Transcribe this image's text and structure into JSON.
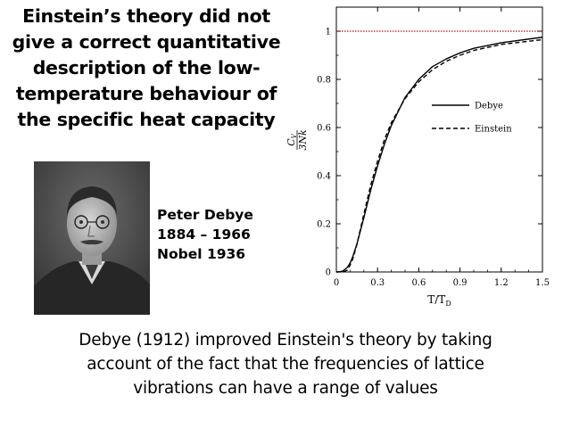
{
  "heading": {
    "lines": [
      "Einstein’s theory did not",
      "give a correct quantitative",
      "description of the low-",
      "temperature behaviour of",
      "the specific heat capacity"
    ]
  },
  "bio": {
    "name": "Peter Debye",
    "years": "1884 – 1966",
    "award": "Nobel 1936"
  },
  "footer": {
    "lines": [
      "Debye (1912) improved Einstein's theory by taking",
      "account of the fact that the frequencies of lattice",
      "vibrations can have a range of values"
    ]
  },
  "chart_data": {
    "type": "line",
    "xlabel": "T/T",
    "xlabel_sub": "D",
    "ylabel_num": "C",
    "ylabel_num_sub": "V",
    "ylabel_den": "3Nk",
    "xlim": [
      0,
      1.5
    ],
    "ylim": [
      0,
      1.1
    ],
    "x_ticks": [
      0,
      0.3,
      0.6,
      0.9,
      1.2,
      1.5
    ],
    "x_tick_labels": [
      "0",
      "0.3",
      "0.6",
      "0.9",
      "1.2",
      "1.5"
    ],
    "y_ticks": [
      0,
      0.2,
      0.4,
      0.6,
      0.8,
      1
    ],
    "y_tick_labels": [
      "0",
      "0.2",
      "0.4",
      "0.6",
      "0.8",
      "1"
    ],
    "reference_line": {
      "y": 1,
      "color": "#cc0000",
      "style": "dotted"
    },
    "legend_position": "middle-right",
    "series": [
      {
        "name": "Debye",
        "style": "solid",
        "color": "#000000",
        "x": [
          0,
          0.03,
          0.05,
          0.08,
          0.1,
          0.12,
          0.15,
          0.2,
          0.25,
          0.3,
          0.35,
          0.4,
          0.5,
          0.6,
          0.7,
          0.8,
          0.9,
          1.0,
          1.2,
          1.5
        ],
        "y": [
          0,
          0.001,
          0.005,
          0.019,
          0.037,
          0.064,
          0.117,
          0.225,
          0.34,
          0.441,
          0.531,
          0.608,
          0.725,
          0.8,
          0.853,
          0.885,
          0.91,
          0.929,
          0.952,
          0.975
        ]
      },
      {
        "name": "Einstein",
        "style": "dashed",
        "color": "#000000",
        "x": [
          0,
          0.05,
          0.08,
          0.1,
          0.12,
          0.15,
          0.2,
          0.25,
          0.3,
          0.35,
          0.4,
          0.5,
          0.6,
          0.7,
          0.8,
          0.9,
          1.0,
          1.2,
          1.5
        ],
        "y": [
          0,
          0.0001,
          0.008,
          0.028,
          0.055,
          0.115,
          0.24,
          0.36,
          0.46,
          0.55,
          0.62,
          0.72,
          0.79,
          0.84,
          0.875,
          0.9,
          0.92,
          0.945,
          0.965
        ]
      }
    ]
  }
}
